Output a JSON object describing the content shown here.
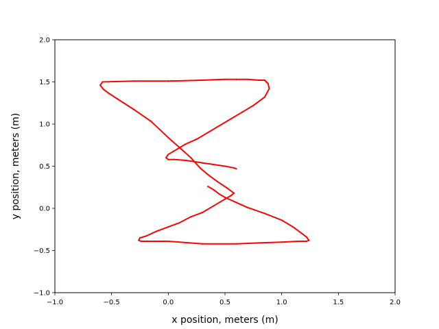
{
  "chart_data": {
    "type": "line",
    "title": "",
    "xlabel": "x position, meters (m)",
    "ylabel": "y position, meters (m)",
    "xlim": [
      -1.0,
      2.0
    ],
    "ylim": [
      -1.0,
      2.0
    ],
    "xticks": [
      -1.0,
      -0.5,
      0.0,
      0.5,
      1.0,
      1.5,
      2.0
    ],
    "yticks": [
      -1.0,
      -0.5,
      0.0,
      0.5,
      1.0,
      1.5,
      2.0
    ],
    "xtick_labels": [
      "−1.0",
      "−0.5",
      "0.0",
      "0.5",
      "1.0",
      "1.5",
      "2.0"
    ],
    "ytick_labels": [
      "−1.0",
      "−0.5",
      "0.0",
      "0.5",
      "1.0",
      "1.5",
      "2.0"
    ],
    "grid": false,
    "legend": "none",
    "series": [
      {
        "color": "#ff0000",
        "x": [
          0.6,
          0.58,
          0.54,
          0.5,
          0.4,
          0.3,
          0.15,
          0.05,
          0.0,
          -0.02,
          0.0,
          0.05,
          0.1,
          0.15,
          0.25,
          0.35,
          0.45,
          0.55,
          0.65,
          0.75,
          0.85,
          0.89,
          0.88,
          0.85,
          0.8,
          0.7,
          0.6,
          0.5,
          0.3,
          0.0,
          -0.3,
          -0.58,
          -0.6,
          -0.57,
          -0.53,
          -0.45,
          -0.3,
          -0.15,
          0.0,
          0.1,
          0.2,
          0.28,
          0.35,
          0.43,
          0.52,
          0.58,
          0.55,
          0.5,
          0.4,
          0.3,
          0.2,
          0.1,
          0.0,
          -0.1,
          -0.2,
          -0.25,
          -0.26,
          -0.24,
          -0.2,
          0.0,
          0.3,
          0.6,
          0.8,
          1.0,
          1.15,
          1.22,
          1.24,
          1.22,
          1.18,
          1.1,
          1.0,
          0.85,
          0.7,
          0.6,
          0.5,
          0.45,
          0.4,
          0.35
        ],
        "y": [
          0.47,
          0.48,
          0.49,
          0.5,
          0.52,
          0.54,
          0.57,
          0.58,
          0.58,
          0.6,
          0.64,
          0.68,
          0.72,
          0.76,
          0.82,
          0.9,
          0.98,
          1.06,
          1.14,
          1.22,
          1.32,
          1.42,
          1.48,
          1.52,
          1.52,
          1.53,
          1.53,
          1.53,
          1.52,
          1.51,
          1.51,
          1.5,
          1.46,
          1.41,
          1.37,
          1.3,
          1.17,
          1.03,
          0.84,
          0.72,
          0.6,
          0.48,
          0.4,
          0.32,
          0.24,
          0.18,
          0.15,
          0.11,
          0.03,
          -0.05,
          -0.1,
          -0.17,
          -0.22,
          -0.27,
          -0.33,
          -0.35,
          -0.38,
          -0.39,
          -0.39,
          -0.39,
          -0.42,
          -0.42,
          -0.41,
          -0.4,
          -0.39,
          -0.39,
          -0.38,
          -0.34,
          -0.3,
          -0.22,
          -0.14,
          -0.06,
          0.01,
          0.07,
          0.13,
          0.17,
          0.22,
          0.26
        ]
      }
    ]
  }
}
